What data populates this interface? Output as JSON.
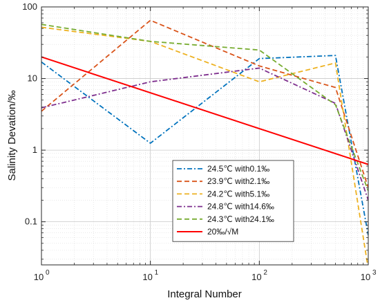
{
  "chart_data": {
    "type": "line",
    "title": "",
    "xlabel": "Integral Number",
    "ylabel": "Salinity Devation/‰",
    "x_scale": "log",
    "y_scale": "log",
    "xlim": [
      1,
      1000
    ],
    "ylim": [
      0.025,
      100
    ],
    "x_ticks": [
      {
        "value": 1,
        "mantissa": "10",
        "exp": "0"
      },
      {
        "value": 10,
        "mantissa": "10",
        "exp": "1"
      },
      {
        "value": 100,
        "mantissa": "10",
        "exp": "2"
      },
      {
        "value": 1000,
        "mantissa": "10",
        "exp": "3"
      }
    ],
    "y_ticks": [
      {
        "value": 0.1,
        "label": "0.1"
      },
      {
        "value": 1,
        "label": "1"
      },
      {
        "value": 10,
        "label": "10"
      },
      {
        "value": 100,
        "label": "100"
      }
    ],
    "grid": true,
    "legend_position": "bottom-right",
    "series": [
      {
        "name": "24.5℃ with0.1‰",
        "color": "#0072BD",
        "dash": "dashdot",
        "x": [
          1,
          10,
          100,
          500,
          1000
        ],
        "y": [
          17,
          1.25,
          19,
          21,
          0.065
        ]
      },
      {
        "name": "23.9℃ with2.1‰",
        "color": "#D95319",
        "dash": "dash",
        "x": [
          1,
          10,
          100,
          500,
          1000
        ],
        "y": [
          3.5,
          65,
          15,
          7.5,
          0.3
        ]
      },
      {
        "name": "24.2℃ with5.1‰",
        "color": "#EDB120",
        "dash": "dash",
        "x": [
          1,
          10,
          100,
          500,
          1000
        ],
        "y": [
          52,
          33,
          9,
          16.5,
          0.022
        ]
      },
      {
        "name": "24.8℃ with14.6‰",
        "color": "#7E2F8E",
        "dash": "dashdot",
        "x": [
          1,
          10,
          100,
          500,
          1000
        ],
        "y": [
          3.9,
          9,
          14,
          4.5,
          0.2
        ]
      },
      {
        "name": "24.3℃ with24.1‰",
        "color": "#77AC30",
        "dash": "dash",
        "x": [
          1,
          10,
          100,
          500,
          1000
        ],
        "y": [
          57,
          33,
          25,
          4.3,
          0.27
        ]
      },
      {
        "name": "20‰/√M",
        "color": "#FF0000",
        "dash": "solid",
        "x": [
          1,
          1000
        ],
        "y": [
          20,
          0.632
        ]
      }
    ]
  }
}
